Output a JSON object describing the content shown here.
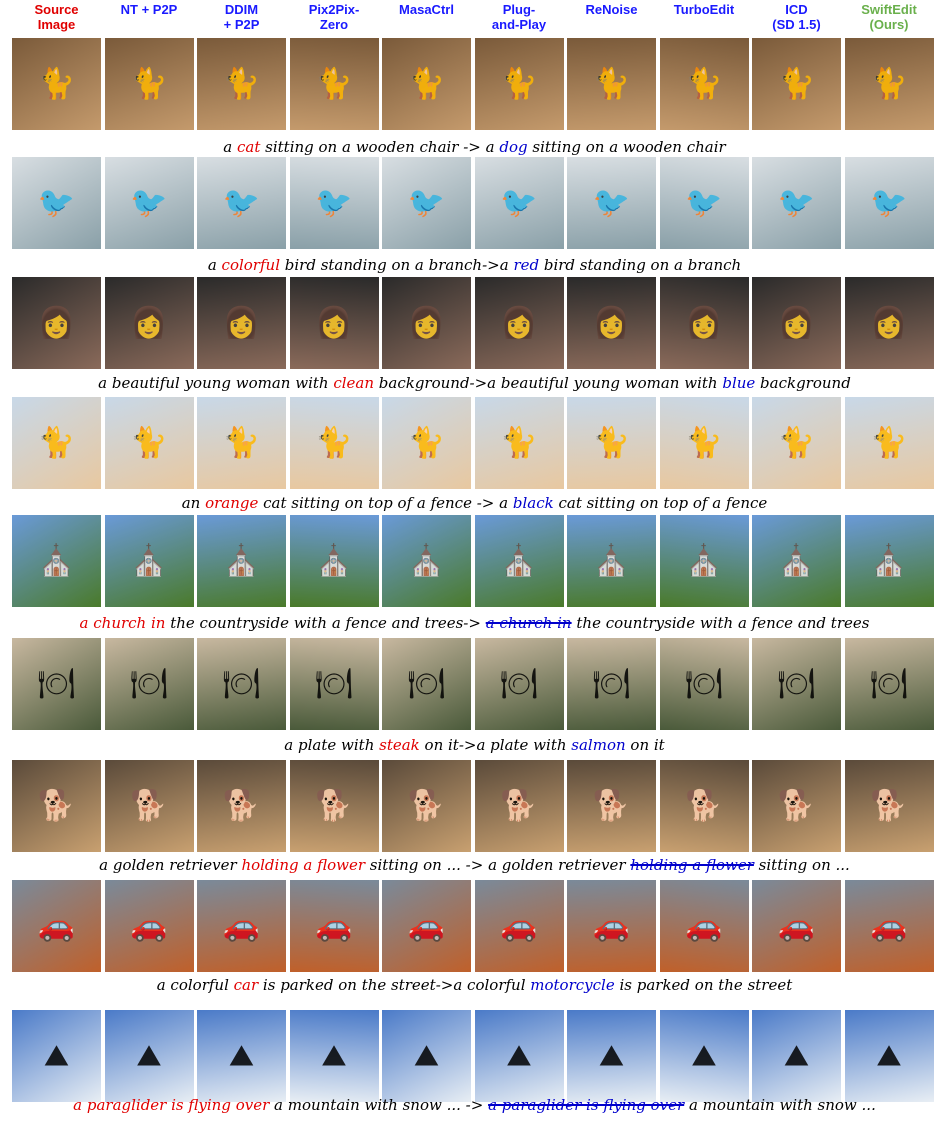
{
  "columns": [
    {
      "label": "Source\nImage",
      "color": "#e00000"
    },
    {
      "label": "NT + P2P",
      "color": "#1a1aff"
    },
    {
      "label": "DDIM\n+ P2P",
      "color": "#1a1aff"
    },
    {
      "label": "Pix2Pix-\nZero",
      "color": "#1a1aff"
    },
    {
      "label": "MasaCtrl",
      "color": "#1a1aff"
    },
    {
      "label": "Plug-\nand-Play",
      "color": "#1a1aff"
    },
    {
      "label": "ReNoise",
      "color": "#1a1aff"
    },
    {
      "label": "TurboEdit",
      "color": "#1a1aff"
    },
    {
      "label": "ICD\n(SD 1.5)",
      "color": "#1a1aff"
    },
    {
      "label": "SwiftEdit\n(Ours)",
      "color": "#6ab04c"
    }
  ],
  "rows": [
    {
      "icon": "cat-icon",
      "glyph": "🐈",
      "bg": [
        "#7a5a3a",
        "#c49a6c"
      ],
      "caption": [
        {
          "t": "a ",
          "s": ""
        },
        {
          "t": "cat",
          "s": "src"
        },
        {
          "t": " sitting on a wooden chair -> a ",
          "s": ""
        },
        {
          "t": "dog",
          "s": "tgt"
        },
        {
          "t": " sitting on a wooden chair",
          "s": ""
        }
      ]
    },
    {
      "icon": "bird-icon",
      "glyph": "🐦",
      "bg": [
        "#d8dee2",
        "#8aa0a8"
      ],
      "caption": [
        {
          "t": "a ",
          "s": ""
        },
        {
          "t": "colorful",
          "s": "src"
        },
        {
          "t": " bird standing on a branch->a ",
          "s": ""
        },
        {
          "t": "red",
          "s": "tgt"
        },
        {
          "t": " bird standing on a branch",
          "s": ""
        }
      ]
    },
    {
      "icon": "woman-icon",
      "glyph": "👩",
      "bg": [
        "#2a2a2a",
        "#8a6a5a"
      ],
      "caption": [
        {
          "t": "a beautiful young woman with ",
          "s": ""
        },
        {
          "t": "clean",
          "s": "src"
        },
        {
          "t": " background->a beautiful young woman with ",
          "s": ""
        },
        {
          "t": "blue",
          "s": "tgt"
        },
        {
          "t": " background",
          "s": ""
        }
      ]
    },
    {
      "icon": "cat-icon",
      "glyph": "🐈",
      "bg": [
        "#c8d8e8",
        "#e8c8a0"
      ],
      "caption": [
        {
          "t": "an ",
          "s": ""
        },
        {
          "t": "orange",
          "s": "src"
        },
        {
          "t": " cat sitting on top of a fence -> a ",
          "s": ""
        },
        {
          "t": "black",
          "s": "tgt"
        },
        {
          "t": " cat sitting on top of a fence",
          "s": ""
        }
      ]
    },
    {
      "icon": "church-icon",
      "glyph": "⛪",
      "bg": [
        "#6a9ad8",
        "#4a7a2a"
      ],
      "caption": [
        {
          "t": "a church in",
          "s": "src"
        },
        {
          "t": " the countryside with a fence and trees-> ",
          "s": ""
        },
        {
          "t": "a church in",
          "s": "strike"
        },
        {
          "t": " the countryside with a fence and trees",
          "s": ""
        }
      ]
    },
    {
      "icon": "plate-icon",
      "glyph": "🍽",
      "bg": [
        "#c8b8a0",
        "#4a5a3a"
      ],
      "caption": [
        {
          "t": "a plate with ",
          "s": ""
        },
        {
          "t": "steak",
          "s": "src"
        },
        {
          "t": " on it->a plate with ",
          "s": ""
        },
        {
          "t": "salmon",
          "s": "tgt"
        },
        {
          "t": " on it",
          "s": ""
        }
      ]
    },
    {
      "icon": "dog-icon",
      "glyph": "🐕",
      "bg": [
        "#5a4a3a",
        "#c8a070"
      ],
      "caption": [
        {
          "t": "a golden retriever ",
          "s": ""
        },
        {
          "t": "holding a flower",
          "s": "src"
        },
        {
          "t": " sitting on ... -> a golden retriever ",
          "s": ""
        },
        {
          "t": "holding a flower",
          "s": "strike"
        },
        {
          "t": " sitting on ...",
          "s": ""
        }
      ]
    },
    {
      "icon": "car-icon",
      "glyph": "🚗",
      "bg": [
        "#7a8a9a",
        "#c0602a"
      ],
      "caption": [
        {
          "t": "a colorful ",
          "s": ""
        },
        {
          "t": "car",
          "s": "src"
        },
        {
          "t": " is parked on the street->a colorful ",
          "s": ""
        },
        {
          "t": "motorcycle",
          "s": "tgt"
        },
        {
          "t": " is parked on the street",
          "s": ""
        }
      ]
    },
    {
      "icon": "mountain-icon",
      "glyph": "⛰",
      "bg": [
        "#4a7ac8",
        "#e8eef4"
      ],
      "caption": [
        {
          "t": "a paraglider is flying over",
          "s": "src"
        },
        {
          "t": " a mountain with snow ... -> ",
          "s": ""
        },
        {
          "t": "a paraglider is flying over",
          "s": "strike"
        },
        {
          "t": " a mountain with snow ...",
          "s": ""
        }
      ]
    }
  ]
}
